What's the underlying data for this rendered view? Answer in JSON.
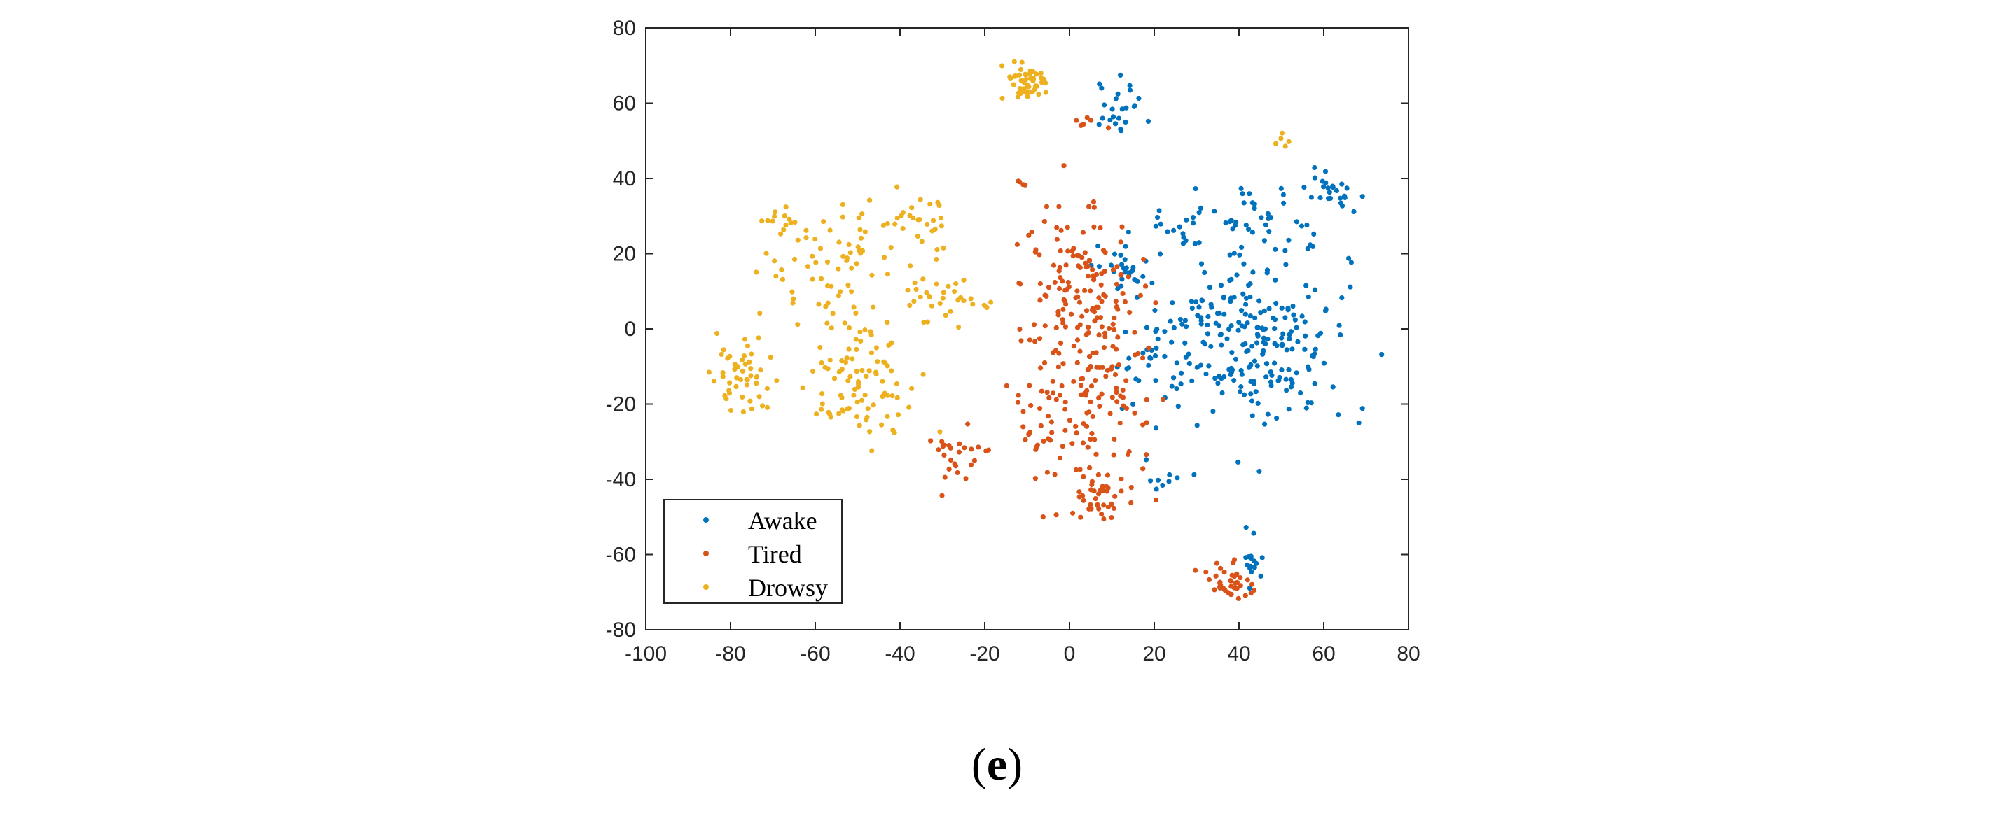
{
  "chart_data": {
    "type": "scatter",
    "title": "",
    "xlabel": "",
    "ylabel": "",
    "xlim": [
      -100,
      80
    ],
    "ylim": [
      -80,
      80
    ],
    "xticks": [
      "-100",
      "-80",
      "-60",
      "-40",
      "-20",
      "0",
      "20",
      "40",
      "60",
      "80"
    ],
    "yticks": [
      "80",
      "60",
      "40",
      "20",
      "0",
      "-20",
      "-40",
      "-60",
      "-80"
    ],
    "grid": false,
    "legend_position": "bottom-left",
    "series": [
      {
        "name": "Awake",
        "color": "#0072BD",
        "clusters": [
          {
            "cx": 12,
            "cy": 58,
            "sx": 3,
            "sy": 3.5,
            "n": 25
          },
          {
            "cx": 14,
            "cy": 15,
            "sx": 4,
            "sy": 4,
            "n": 28
          },
          {
            "cx": 28,
            "cy": 29,
            "sx": 4,
            "sy": 4,
            "n": 22
          },
          {
            "cx": 47,
            "cy": 27,
            "sx": 7,
            "sy": 6,
            "n": 40
          },
          {
            "cx": 62,
            "cy": 37,
            "sx": 2.5,
            "sy": 3,
            "n": 25
          },
          {
            "cx": 47,
            "cy": -4,
            "sx": 9,
            "sy": 11,
            "n": 170
          },
          {
            "cx": 25,
            "cy": -9,
            "sx": 6,
            "sy": 9,
            "n": 60
          },
          {
            "cx": 38,
            "cy": 6,
            "sx": 6,
            "sy": 4,
            "n": 20
          },
          {
            "cx": 22,
            "cy": -40,
            "sx": 3,
            "sy": 2,
            "n": 8
          },
          {
            "cx": 43,
            "cy": -60,
            "sx": 1.5,
            "sy": 4,
            "n": 16
          }
        ]
      },
      {
        "name": "Tired",
        "color": "#D95319",
        "clusters": [
          {
            "cx": 2,
            "cy": 10,
            "sx": 7,
            "sy": 12,
            "n": 150
          },
          {
            "cx": 3,
            "cy": -22,
            "sx": 9,
            "sy": 12,
            "n": 130
          },
          {
            "cx": 8,
            "cy": -46,
            "sx": 3,
            "sy": 2.5,
            "n": 30
          },
          {
            "cx": -27,
            "cy": -33,
            "sx": 4,
            "sy": 4,
            "n": 26
          },
          {
            "cx": 5,
            "cy": 55,
            "sx": 2,
            "sy": 1.5,
            "n": 6
          },
          {
            "cx": 38,
            "cy": -67,
            "sx": 3,
            "sy": 2.5,
            "n": 40
          },
          {
            "cx": -11,
            "cy": 39,
            "sx": 1,
            "sy": 1,
            "n": 4
          }
        ]
      },
      {
        "name": "Drowsy",
        "color": "#EDB120",
        "clusters": [
          {
            "cx": -10,
            "cy": 66,
            "sx": 2.5,
            "sy": 2.5,
            "n": 50
          },
          {
            "cx": -68,
            "cy": 29,
            "sx": 3,
            "sy": 2,
            "n": 14
          },
          {
            "cx": -38,
            "cy": 28,
            "sx": 5,
            "sy": 4,
            "n": 30
          },
          {
            "cx": -55,
            "cy": 15,
            "sx": 8,
            "sy": 8,
            "n": 60
          },
          {
            "cx": -30,
            "cy": 8,
            "sx": 5,
            "sy": 4,
            "n": 35
          },
          {
            "cx": -78,
            "cy": -12,
            "sx": 4,
            "sy": 5,
            "n": 50
          },
          {
            "cx": -48,
            "cy": -14,
            "sx": 6,
            "sy": 9,
            "n": 90
          },
          {
            "cx": 51,
            "cy": 50,
            "sx": 1,
            "sy": 1,
            "n": 5
          }
        ]
      }
    ]
  },
  "caption": {
    "open": "(",
    "letter": "e",
    "close": ")"
  }
}
